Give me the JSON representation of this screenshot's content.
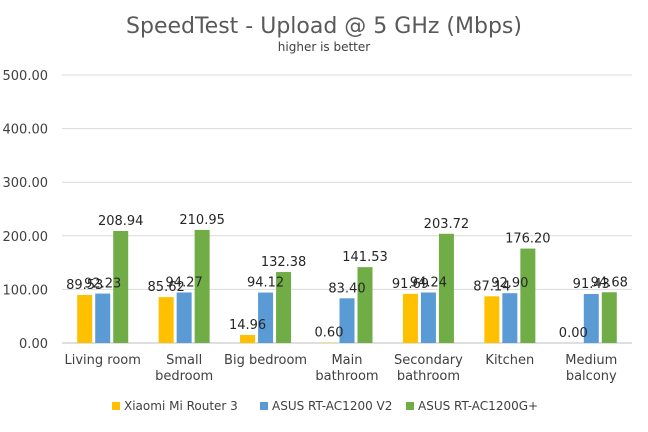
{
  "chart_data": {
    "type": "bar",
    "title": "SpeedTest - Upload @ 5 GHz (Mbps)",
    "subtitle": "higher is better",
    "categories": [
      [
        "Living room"
      ],
      [
        "Small",
        "bedroom"
      ],
      [
        "Big bedroom"
      ],
      [
        "Main",
        "bathroom"
      ],
      [
        "Secondary",
        "bathroom"
      ],
      [
        "Kitchen"
      ],
      [
        "Medium",
        "balcony"
      ]
    ],
    "series": [
      {
        "name": "Xiaomi Mi Router 3",
        "color": "#ffc000",
        "values": [
          89.53,
          85.62,
          14.96,
          0.6,
          91.69,
          87.14,
          0.0
        ],
        "labels": [
          "89.53",
          "85.62",
          "14.96",
          "0.60",
          "91.69",
          "87.14",
          "0.00"
        ]
      },
      {
        "name": "ASUS RT-AC1200 V2",
        "color": "#5b9bd5",
        "values": [
          92.23,
          94.27,
          94.12,
          83.4,
          94.24,
          92.9,
          91.43
        ],
        "labels": [
          "92.23",
          "94.27",
          "94.12",
          "83.40",
          "94.24",
          "92.90",
          "91.43"
        ]
      },
      {
        "name": "ASUS RT-AC1200G+",
        "color": "#70ad47",
        "values": [
          208.94,
          210.95,
          132.38,
          141.53,
          203.72,
          176.2,
          94.68
        ],
        "labels": [
          "208.94",
          "210.95",
          "132.38",
          "141.53",
          "203.72",
          "176.20",
          "94.68"
        ]
      }
    ],
    "ylim": [
      0,
      500
    ],
    "yticks": [
      "0.00",
      "100.00",
      "200.00",
      "300.00",
      "400.00",
      "500.00"
    ],
    "ytick_values": [
      0,
      100,
      200,
      300,
      400,
      500
    ],
    "grid": true,
    "legend": "bottom"
  }
}
